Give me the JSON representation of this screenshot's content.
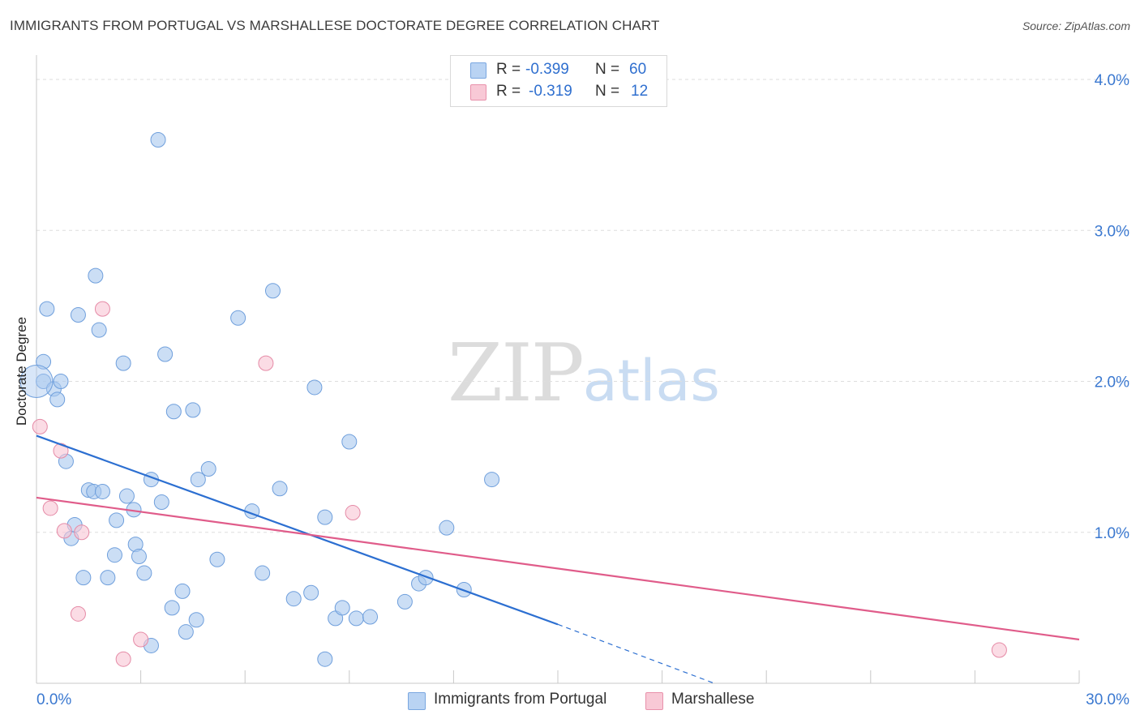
{
  "header": {
    "title": "IMMIGRANTS FROM PORTUGAL VS MARSHALLESE DOCTORATE DEGREE CORRELATION CHART",
    "source": "Source: ZipAtlas.com"
  },
  "watermark": {
    "zip": "ZIP",
    "atlas": "atlas"
  },
  "legend_top": {
    "rows": [
      {
        "label": "R =",
        "r": "-0.399",
        "n_label": "N =",
        "n": "60",
        "color": "#b9d3f3",
        "border": "#7aa7e0"
      },
      {
        "label": "R =",
        "r": "-0.319",
        "n_label": "N =",
        "n": "12",
        "color": "#f8c9d6",
        "border": "#e891ab"
      }
    ]
  },
  "legend_bottom": [
    {
      "label": "Immigrants from Portugal",
      "color": "#b9d3f3",
      "border": "#7aa7e0"
    },
    {
      "label": "Marshallese",
      "color": "#f8c9d6",
      "border": "#e891ab"
    }
  ],
  "chart_data": {
    "type": "scatter",
    "title": "IMMIGRANTS FROM PORTUGAL VS MARSHALLESE DOCTORATE DEGREE CORRELATION CHART",
    "xlabel": "",
    "ylabel": "Doctorate Degree",
    "xlim": [
      0,
      30
    ],
    "ylim": [
      0,
      4.0
    ],
    "x_ticks": [
      "0.0%",
      "30.0%"
    ],
    "y_ticks": [
      "1.0%",
      "2.0%",
      "3.0%",
      "4.0%"
    ],
    "y_tick_values": [
      1.0,
      2.0,
      3.0,
      4.0
    ],
    "grid": true,
    "legend_position": "top-center",
    "series": [
      {
        "name": "Immigrants from Portugal",
        "color": "#a9c8ef",
        "stroke": "#6f9fdc",
        "points": [
          [
            0.2,
            2.0
          ],
          [
            0.2,
            2.13
          ],
          [
            0.3,
            2.48
          ],
          [
            0.5,
            1.95
          ],
          [
            0.6,
            1.88
          ],
          [
            0.7,
            2.0
          ],
          [
            0.85,
            1.47
          ],
          [
            1.0,
            0.96
          ],
          [
            1.1,
            1.05
          ],
          [
            1.2,
            2.44
          ],
          [
            1.35,
            0.7
          ],
          [
            1.5,
            1.28
          ],
          [
            1.65,
            1.27
          ],
          [
            1.7,
            2.7
          ],
          [
            1.8,
            2.34
          ],
          [
            1.9,
            1.27
          ],
          [
            2.05,
            0.7
          ],
          [
            2.25,
            0.85
          ],
          [
            2.3,
            1.08
          ],
          [
            2.5,
            2.12
          ],
          [
            2.6,
            1.24
          ],
          [
            2.8,
            1.15
          ],
          [
            2.85,
            0.92
          ],
          [
            2.95,
            0.84
          ],
          [
            3.1,
            0.73
          ],
          [
            3.3,
            0.25
          ],
          [
            3.3,
            1.35
          ],
          [
            3.5,
            3.6
          ],
          [
            3.6,
            1.2
          ],
          [
            3.7,
            2.18
          ],
          [
            3.9,
            0.5
          ],
          [
            3.95,
            1.8
          ],
          [
            4.2,
            0.61
          ],
          [
            4.3,
            0.34
          ],
          [
            4.5,
            1.81
          ],
          [
            4.6,
            0.42
          ],
          [
            4.65,
            1.35
          ],
          [
            4.95,
            1.42
          ],
          [
            5.2,
            0.82
          ],
          [
            5.8,
            2.42
          ],
          [
            6.2,
            1.14
          ],
          [
            6.5,
            0.73
          ],
          [
            6.8,
            2.6
          ],
          [
            7.0,
            1.29
          ],
          [
            7.4,
            0.56
          ],
          [
            7.9,
            0.6
          ],
          [
            8.0,
            1.96
          ],
          [
            8.3,
            1.1
          ],
          [
            8.3,
            0.16
          ],
          [
            8.6,
            0.43
          ],
          [
            8.8,
            0.5
          ],
          [
            9.0,
            1.6
          ],
          [
            9.2,
            0.43
          ],
          [
            9.6,
            0.44
          ],
          [
            10.6,
            0.54
          ],
          [
            11.0,
            0.66
          ],
          [
            11.2,
            0.7
          ],
          [
            11.8,
            1.03
          ],
          [
            12.3,
            0.62
          ],
          [
            13.1,
            1.35
          ]
        ]
      },
      {
        "name": "Marshallese",
        "color": "#f8c4d3",
        "stroke": "#e58aa6",
        "points": [
          [
            0.1,
            1.7
          ],
          [
            0.4,
            1.16
          ],
          [
            0.7,
            1.54
          ],
          [
            0.8,
            1.01
          ],
          [
            1.2,
            0.46
          ],
          [
            1.3,
            1.0
          ],
          [
            1.9,
            2.48
          ],
          [
            2.5,
            0.16
          ],
          [
            3.0,
            0.29
          ],
          [
            6.6,
            2.12
          ],
          [
            9.1,
            1.13
          ],
          [
            27.7,
            0.22
          ]
        ]
      }
    ],
    "trendlines": [
      {
        "series": "Immigrants from Portugal",
        "x": [
          0,
          15
        ],
        "y": [
          1.64,
          0.39
        ],
        "dashed_to": [
          19.5,
          0.0
        ],
        "color": "#2c6fd1"
      },
      {
        "series": "Marshallese",
        "x": [
          0,
          30
        ],
        "y": [
          1.23,
          0.29
        ],
        "color": "#e05c8a"
      }
    ]
  }
}
